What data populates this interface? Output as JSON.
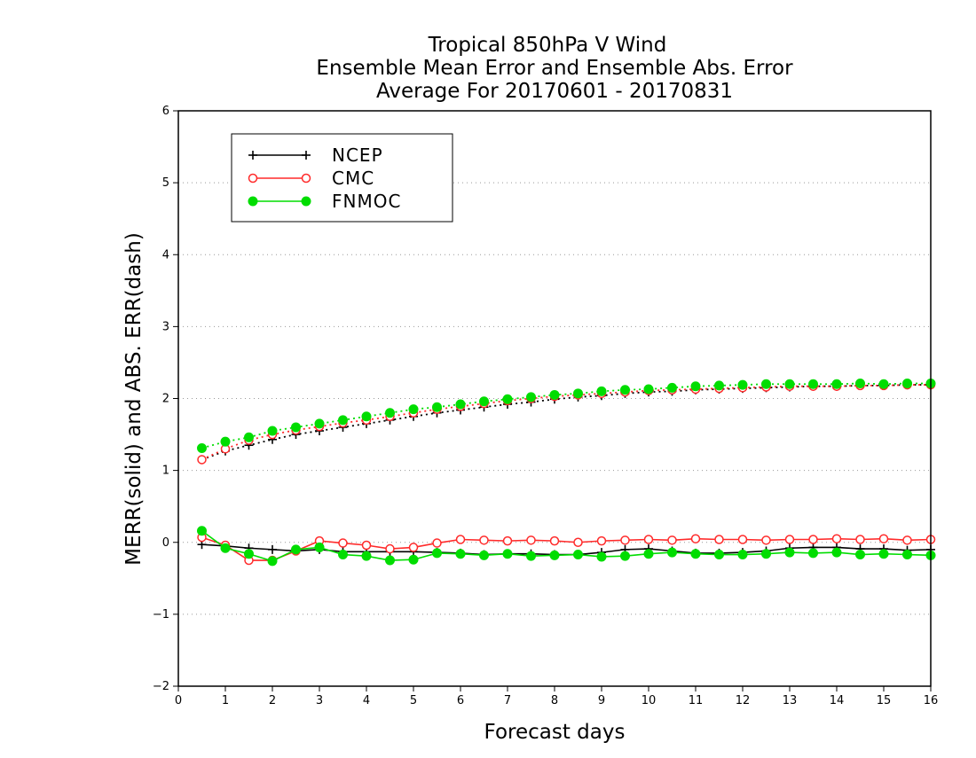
{
  "chart_data": {
    "type": "line",
    "title": [
      "Tropical 850hPa V Wind",
      "Ensemble Mean Error and Ensemble Abs. Error",
      "Average For 20170601 - 20170831"
    ],
    "xlabel": "Forecast days",
    "ylabel": "MERR(solid) and ABS. ERR(dash)",
    "xlim": [
      0,
      16
    ],
    "ylim": [
      -2,
      6
    ],
    "xticks": [
      "0",
      "1",
      "2",
      "3",
      "4",
      "5",
      "6",
      "7",
      "8",
      "9",
      "10",
      "11",
      "12",
      "13",
      "14",
      "15",
      "16"
    ],
    "yticks": [
      "−2",
      "−1",
      "0",
      "1",
      "2",
      "3",
      "4",
      "5",
      "6"
    ],
    "grid": "horizontal dotted",
    "legend_position": "top-left",
    "x": [
      0.5,
      1,
      1.5,
      2,
      2.5,
      3,
      3.5,
      4,
      4.5,
      5,
      5.5,
      6,
      6.5,
      7,
      7.5,
      8,
      8.5,
      9,
      9.5,
      10,
      10.5,
      11,
      11.5,
      12,
      12.5,
      13,
      13.5,
      14,
      14.5,
      15,
      15.5,
      16
    ],
    "series": [
      {
        "name": "NCEP",
        "color": "#000000",
        "marker": "plus",
        "merr": [
          -0.03,
          -0.05,
          -0.08,
          -0.1,
          -0.12,
          -0.1,
          -0.13,
          -0.13,
          -0.13,
          -0.13,
          -0.14,
          -0.15,
          -0.17,
          -0.16,
          -0.16,
          -0.17,
          -0.17,
          -0.14,
          -0.1,
          -0.09,
          -0.12,
          -0.15,
          -0.15,
          -0.14,
          -0.12,
          -0.08,
          -0.07,
          -0.07,
          -0.09,
          -0.09,
          -0.11,
          -0.1
        ],
        "abs_err": [
          1.15,
          1.27,
          1.35,
          1.43,
          1.5,
          1.55,
          1.6,
          1.65,
          1.7,
          1.75,
          1.8,
          1.84,
          1.88,
          1.92,
          1.95,
          1.99,
          2.02,
          2.04,
          2.07,
          2.09,
          2.1,
          2.12,
          2.13,
          2.14,
          2.15,
          2.16,
          2.17,
          2.17,
          2.18,
          2.18,
          2.19,
          2.19
        ]
      },
      {
        "name": "CMC",
        "color": "#ff2a2a",
        "marker": "open-circle",
        "merr": [
          0.07,
          -0.04,
          -0.25,
          -0.25,
          -0.12,
          0.02,
          -0.01,
          -0.04,
          -0.09,
          -0.07,
          -0.01,
          0.04,
          0.03,
          0.02,
          0.03,
          0.02,
          0.0,
          0.02,
          0.03,
          0.04,
          0.03,
          0.05,
          0.04,
          0.04,
          0.03,
          0.04,
          0.04,
          0.05,
          0.04,
          0.05,
          0.03,
          0.04
        ],
        "abs_err": [
          1.15,
          1.3,
          1.42,
          1.5,
          1.56,
          1.61,
          1.66,
          1.7,
          1.75,
          1.8,
          1.85,
          1.89,
          1.93,
          1.97,
          2.0,
          2.03,
          2.05,
          2.07,
          2.09,
          2.11,
          2.12,
          2.13,
          2.14,
          2.15,
          2.16,
          2.17,
          2.17,
          2.17,
          2.18,
          2.18,
          2.19,
          2.19
        ]
      },
      {
        "name": "FNMOC",
        "color": "#00dd00",
        "marker": "filled-circle",
        "merr": [
          0.16,
          -0.08,
          -0.16,
          -0.26,
          -0.1,
          -0.07,
          -0.17,
          -0.19,
          -0.25,
          -0.24,
          -0.15,
          -0.16,
          -0.18,
          -0.16,
          -0.19,
          -0.18,
          -0.17,
          -0.2,
          -0.19,
          -0.16,
          -0.14,
          -0.16,
          -0.17,
          -0.17,
          -0.16,
          -0.14,
          -0.15,
          -0.14,
          -0.17,
          -0.16,
          -0.17,
          -0.18
        ],
        "abs_err": [
          1.31,
          1.4,
          1.46,
          1.55,
          1.6,
          1.65,
          1.7,
          1.75,
          1.8,
          1.85,
          1.88,
          1.92,
          1.96,
          1.99,
          2.02,
          2.05,
          2.07,
          2.1,
          2.12,
          2.13,
          2.15,
          2.17,
          2.18,
          2.19,
          2.2,
          2.2,
          2.2,
          2.2,
          2.21,
          2.2,
          2.21,
          2.21
        ]
      }
    ]
  }
}
